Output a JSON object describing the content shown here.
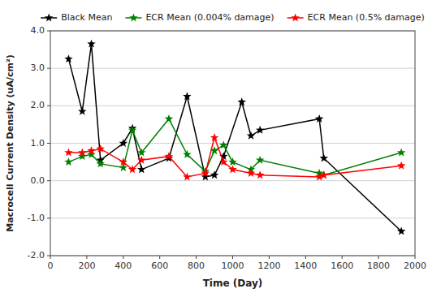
{
  "chart_data": {
    "type": "line",
    "xlabel": "Time (Day)",
    "ylabel": "Macrocell Current Density (uA/cm²)",
    "series": [
      {
        "name": "Black Mean",
        "color": "#000000",
        "marker": "star",
        "x": [
          100,
          175,
          225,
          275,
          400,
          450,
          500,
          650,
          750,
          850,
          900,
          950,
          1050,
          1100,
          1150,
          1475,
          1500,
          1925
        ],
        "values": [
          3.25,
          1.85,
          3.65,
          0.55,
          1.0,
          1.4,
          0.3,
          0.6,
          2.25,
          0.1,
          0.15,
          0.65,
          2.1,
          1.2,
          1.35,
          1.65,
          0.6,
          -1.35
        ]
      },
      {
        "name": "ECR Mean (0.004% damage)",
        "color": "#008000",
        "marker": "star",
        "x": [
          100,
          175,
          225,
          275,
          400,
          450,
          500,
          650,
          750,
          850,
          900,
          950,
          1000,
          1100,
          1150,
          1475,
          1500,
          1925
        ],
        "values": [
          0.5,
          0.65,
          0.7,
          0.45,
          0.35,
          1.35,
          0.75,
          1.65,
          0.7,
          0.25,
          0.8,
          0.95,
          0.5,
          0.3,
          0.55,
          0.2,
          0.15,
          0.75
        ]
      },
      {
        "name": "ECR Mean (0.5% damage)",
        "color": "#ff0000",
        "marker": "star",
        "x": [
          100,
          175,
          225,
          275,
          400,
          450,
          500,
          650,
          750,
          850,
          900,
          950,
          1000,
          1100,
          1150,
          1475,
          1500,
          1925
        ],
        "values": [
          0.75,
          0.75,
          0.8,
          0.85,
          0.5,
          0.3,
          0.55,
          0.65,
          0.1,
          0.2,
          1.15,
          0.5,
          0.3,
          0.2,
          0.15,
          0.1,
          0.15,
          0.4
        ]
      }
    ],
    "xlim": [
      0,
      2000
    ],
    "ylim": [
      -2.0,
      4.0
    ],
    "xticks": [
      0,
      200,
      400,
      600,
      800,
      1000,
      1200,
      1400,
      1600,
      1800,
      2000
    ],
    "yticks": [
      {
        "value": -2.0,
        "label": "-2.0"
      },
      {
        "value": -1.0,
        "label": "-1.0"
      },
      {
        "value": 0.0,
        "label": "0.0"
      },
      {
        "value": 1.0,
        "label": "1.0"
      },
      {
        "value": 2.0,
        "label": "2.0"
      },
      {
        "value": 3.0,
        "label": "3.0"
      },
      {
        "value": 4.0,
        "label": "4.0"
      }
    ],
    "grid": "y",
    "legend": "top"
  }
}
